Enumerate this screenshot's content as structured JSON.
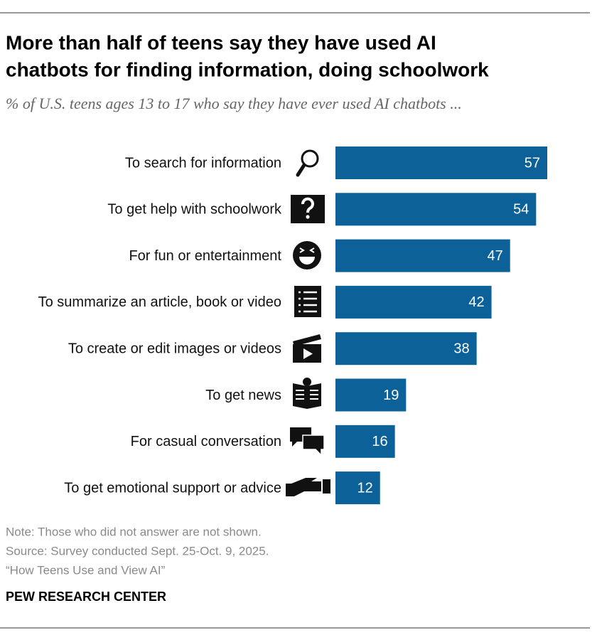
{
  "chart_data": {
    "type": "bar",
    "orientation": "horizontal",
    "title": [
      "More than half of teens say they have used AI",
      "chatbots for finding information, doing schoolwork"
    ],
    "subtitle": "% of U.S. teens ages 13 to 17 who say they have ever used AI chatbots ...",
    "categories": [
      "To search for information",
      "To get help with schoolwork",
      "For fun or entertainment",
      "To summarize an article, book or video",
      "To create or edit images or videos",
      "To get news",
      "For casual conversation",
      "To get emotional support or advice"
    ],
    "values": [
      57,
      54,
      47,
      42,
      38,
      19,
      16,
      12
    ],
    "color": "#0b6198",
    "note": "Note: Those who did not answer are not shown.",
    "source": "Source: Survey conducted Sept. 25-Oct. 9, 2025.",
    "report": "“How Teens Use and View AI”",
    "brand": "PEW RESEARCH CENTER"
  }
}
